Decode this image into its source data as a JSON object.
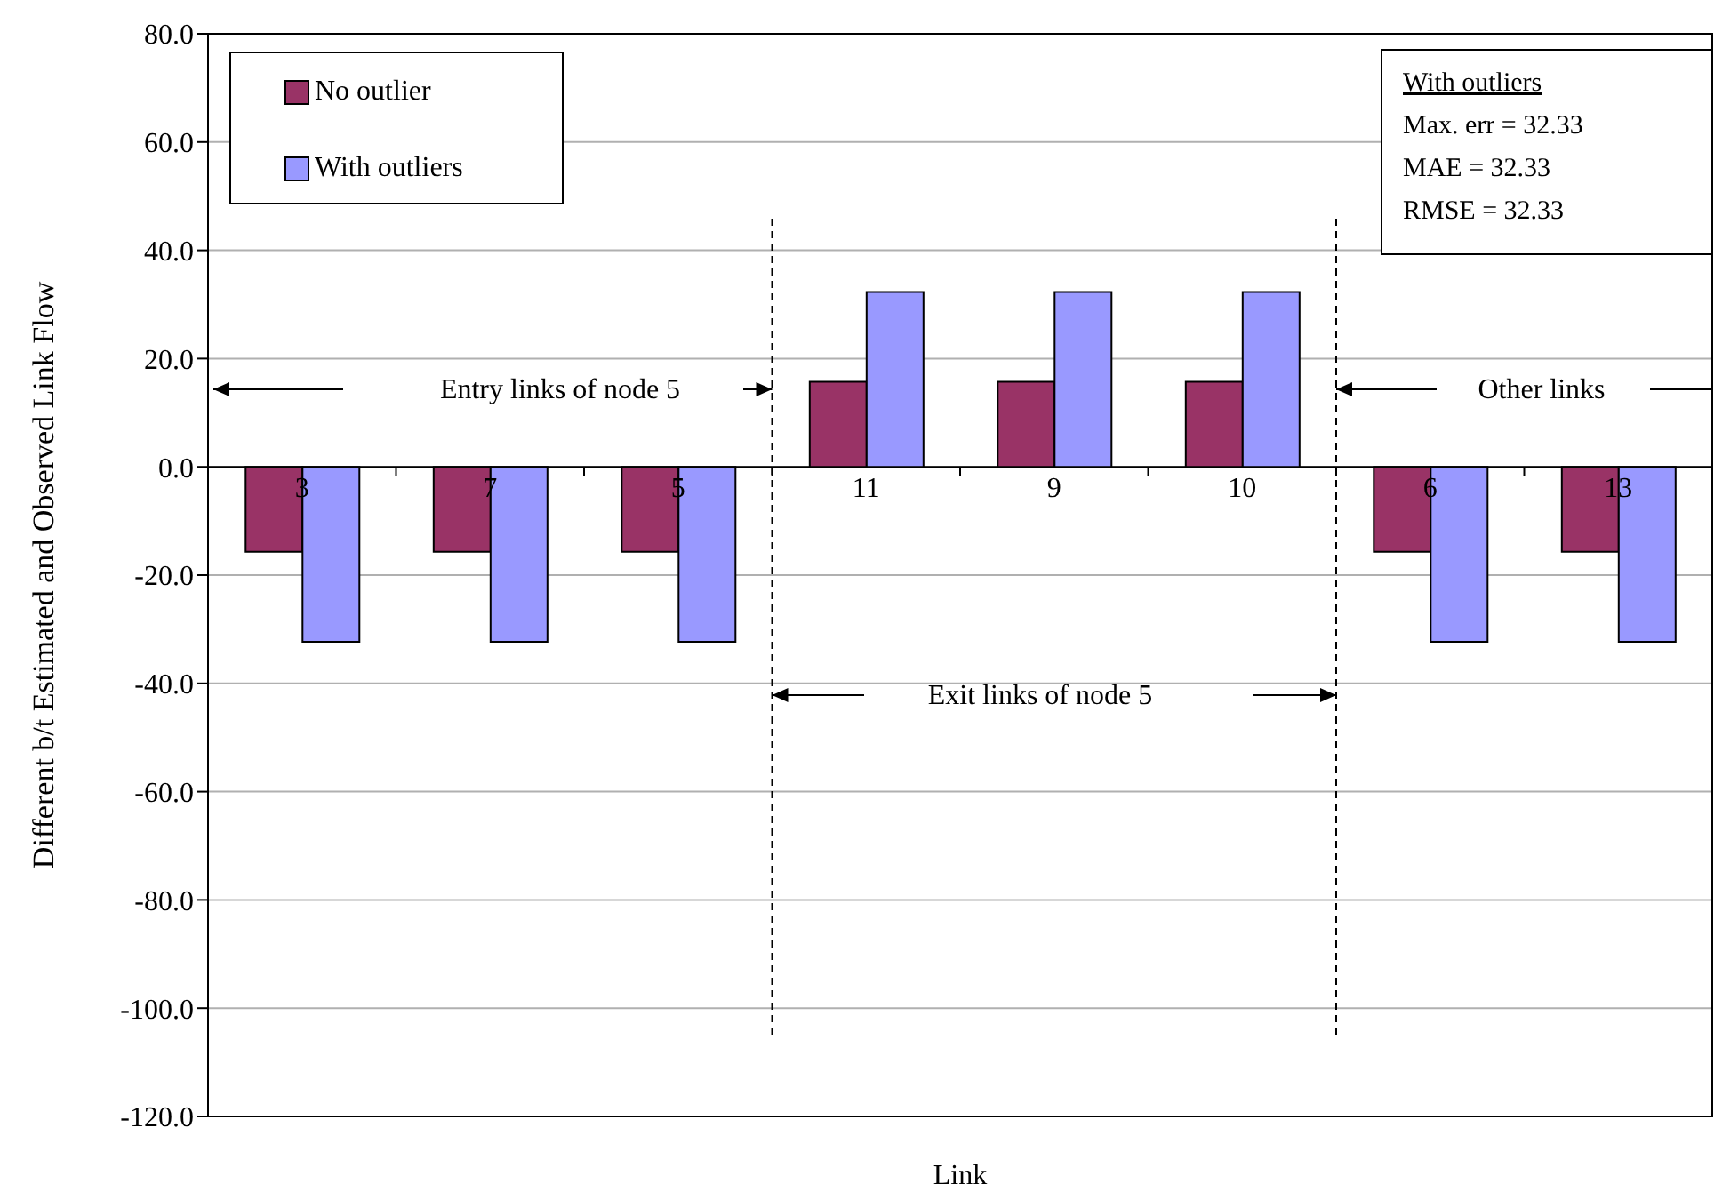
{
  "chart_data": {
    "type": "bar",
    "categories": [
      "3",
      "7",
      "5",
      "11",
      "9",
      "10",
      "6",
      "13"
    ],
    "series": [
      {
        "name": "No outlier",
        "color": "#993366",
        "values": [
          -15.7,
          -15.7,
          -15.7,
          15.7,
          15.7,
          15.7,
          -15.7,
          -15.7
        ]
      },
      {
        "name": "With outliers",
        "color": "#9999ff",
        "values": [
          -32.3,
          -32.3,
          -32.3,
          32.3,
          32.3,
          32.3,
          -32.3,
          -32.3
        ]
      }
    ],
    "xlabel": "Link",
    "ylabel": "Different b/t Estimated and Observed Link Flow",
    "ylim": [
      -120,
      80
    ],
    "yticks": [
      {
        "value": -120,
        "label": "-120.0"
      },
      {
        "value": -100,
        "label": "-100.0"
      },
      {
        "value": -80,
        "label": "-80.0"
      },
      {
        "value": -60,
        "label": "-60.0"
      },
      {
        "value": -40,
        "label": "-40.0"
      },
      {
        "value": -20,
        "label": "-20.0"
      },
      {
        "value": 0,
        "label": "0.0"
      },
      {
        "value": 20,
        "label": "20.0"
      },
      {
        "value": 40,
        "label": "40.0"
      },
      {
        "value": 60,
        "label": "60.0"
      },
      {
        "value": 80,
        "label": "80.0"
      }
    ],
    "grid": "y",
    "legend": "top left",
    "annotations": [
      "Entry links of node 5",
      "Exit links of node 5",
      "Other links",
      "With outliers",
      "Max. err = 32.33",
      "MAE = 32.33",
      "RMSE = 32.33"
    ]
  }
}
